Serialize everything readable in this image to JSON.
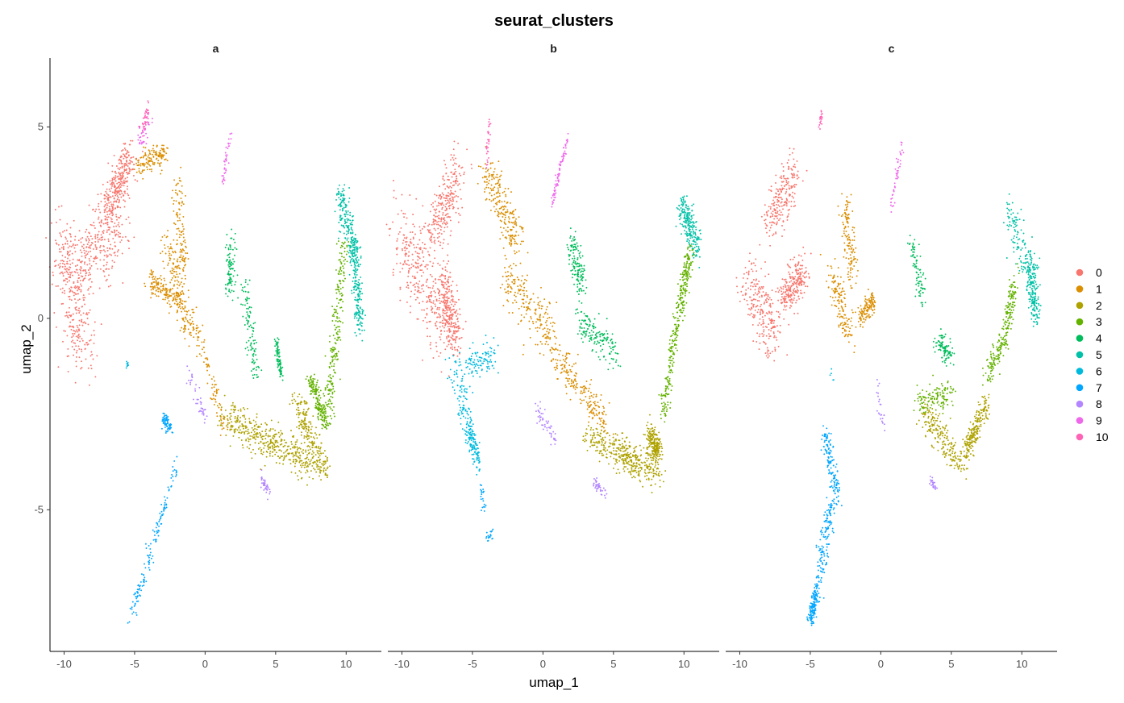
{
  "chart_data": {
    "type": "scatter",
    "title": "seurat_clusters",
    "xlabel": "umap_1",
    "ylabel": "umap_2",
    "xlim": [
      -11,
      12.5
    ],
    "ylim": [
      -8.7,
      6.8
    ],
    "x_ticks": [
      -10,
      -5,
      0,
      5,
      10
    ],
    "x_tick_labels": [
      "-10",
      "-5",
      "0",
      "5",
      "10"
    ],
    "y_ticks": [
      -5,
      0,
      5
    ],
    "y_tick_labels": [
      "-5",
      "0",
      "5"
    ],
    "grid": false,
    "legend_position": "right",
    "legend": [
      {
        "label": "0",
        "color": "#F8766D"
      },
      {
        "label": "1",
        "color": "#DB8E00"
      },
      {
        "label": "2",
        "color": "#AEA200"
      },
      {
        "label": "3",
        "color": "#64B200"
      },
      {
        "label": "4",
        "color": "#00BD5C"
      },
      {
        "label": "5",
        "color": "#00C1A7"
      },
      {
        "label": "6",
        "color": "#00BADE"
      },
      {
        "label": "7",
        "color": "#00A6FF"
      },
      {
        "label": "8",
        "color": "#B385FF"
      },
      {
        "label": "9",
        "color": "#EF67EB"
      },
      {
        "label": "10",
        "color": "#FF63B6"
      }
    ],
    "facets": [
      {
        "label": "a",
        "clusters": [
          {
            "id": "0",
            "n": 900,
            "segments": [
              [
                -10.2,
                2.0,
                -8.5,
                -1.0,
                0.9
              ],
              [
                -9.0,
                1.2,
                -6.0,
                2.6,
                1.0
              ],
              [
                -7.0,
                2.8,
                -5.2,
                4.2,
                0.6
              ]
            ]
          },
          {
            "id": "1",
            "n": 650,
            "segments": [
              [
                -4.8,
                4.0,
                -2.8,
                4.3,
                0.3
              ],
              [
                -2.0,
                3.6,
                -1.5,
                1.2,
                0.35
              ],
              [
                -2.8,
                2.0,
                -1.2,
                -0.2,
                0.45
              ],
              [
                -1.0,
                0.2,
                1.4,
                -2.8,
                0.35
              ],
              [
                -4.0,
                1.0,
                -1.8,
                0.5,
                0.3
              ]
            ]
          },
          {
            "id": "2",
            "n": 650,
            "segments": [
              [
                1.2,
                -2.5,
                4.8,
                -3.3,
                0.45
              ],
              [
                4.5,
                -3.2,
                7.5,
                -3.8,
                0.45
              ],
              [
                6.5,
                -2.2,
                8.5,
                -4.0,
                0.4
              ]
            ]
          },
          {
            "id": "3",
            "n": 420,
            "segments": [
              [
                8.8,
                -2.5,
                9.8,
                2.0,
                0.35
              ],
              [
                7.5,
                -1.6,
                8.6,
                -2.8,
                0.3
              ]
            ]
          },
          {
            "id": "4",
            "n": 280,
            "segments": [
              [
                1.8,
                2.0,
                1.8,
                0.6,
                0.35
              ],
              [
                2.8,
                0.8,
                3.6,
                -1.5,
                0.3
              ],
              [
                5.0,
                -0.5,
                5.4,
                -1.5,
                0.15
              ]
            ]
          },
          {
            "id": "5",
            "n": 380,
            "segments": [
              [
                9.5,
                3.3,
                10.8,
                1.5,
                0.4
              ],
              [
                10.5,
                2.0,
                11.0,
                -0.3,
                0.3
              ]
            ]
          },
          {
            "id": "6",
            "n": 10,
            "segments": [
              [
                -5.5,
                -1.2,
                -5.5,
                -1.2,
                0.1
              ]
            ]
          },
          {
            "id": "7",
            "n": 210,
            "segments": [
              [
                -5.3,
                -7.9,
                -3.8,
                -6.0,
                0.25
              ],
              [
                -3.6,
                -5.8,
                -2.0,
                -3.8,
                0.18
              ],
              [
                -3.0,
                -2.6,
                -2.4,
                -2.9,
                0.15
              ]
            ]
          },
          {
            "id": "8",
            "n": 80,
            "segments": [
              [
                -1.2,
                -1.4,
                0.0,
                -2.6,
                0.25
              ],
              [
                4.0,
                -4.2,
                4.5,
                -4.5,
                0.15
              ]
            ]
          },
          {
            "id": "9",
            "n": 75,
            "segments": [
              [
                1.2,
                3.5,
                1.8,
                4.8,
                0.12
              ],
              [
                -4.8,
                4.6,
                -3.8,
                5.2,
                0.25
              ]
            ]
          },
          {
            "id": "10",
            "n": 40,
            "segments": [
              [
                -4.5,
                4.8,
                -4.0,
                5.5,
                0.15
              ]
            ]
          }
        ]
      },
      {
        "label": "b",
        "clusters": [
          {
            "id": "0",
            "n": 850,
            "segments": [
              [
                -10.2,
                2.5,
                -7.2,
                -0.5,
                1.0
              ],
              [
                -8.0,
                2.0,
                -6.0,
                3.8,
                0.7
              ],
              [
                -7.2,
                1.0,
                -6.2,
                -0.5,
                0.6
              ]
            ]
          },
          {
            "id": "1",
            "n": 650,
            "segments": [
              [
                -4.0,
                3.8,
                -1.8,
                2.0,
                0.6
              ],
              [
                -2.8,
                1.2,
                0.8,
                -0.5,
                0.6
              ],
              [
                0.5,
                -0.8,
                4.5,
                -2.8,
                0.4
              ]
            ]
          },
          {
            "id": "2",
            "n": 600,
            "segments": [
              [
                3.2,
                -3.0,
                6.5,
                -3.8,
                0.4
              ],
              [
                5.5,
                -3.5,
                8.2,
                -4.0,
                0.4
              ],
              [
                7.5,
                -3.0,
                8.2,
                -3.5,
                0.3
              ]
            ]
          },
          {
            "id": "3",
            "n": 330,
            "segments": [
              [
                8.5,
                -2.5,
                9.8,
                0.5,
                0.3
              ],
              [
                9.8,
                0.5,
                10.5,
                1.8,
                0.3
              ]
            ]
          },
          {
            "id": "4",
            "n": 300,
            "segments": [
              [
                2.0,
                2.0,
                2.8,
                0.8,
                0.4
              ],
              [
                2.5,
                0.0,
                5.2,
                -1.0,
                0.4
              ]
            ]
          },
          {
            "id": "5",
            "n": 220,
            "segments": [
              [
                9.8,
                3.0,
                11.0,
                1.8,
                0.4
              ]
            ]
          },
          {
            "id": "6",
            "n": 330,
            "segments": [
              [
                -6.5,
                -1.0,
                -5.0,
                -3.2,
                0.5
              ],
              [
                -5.2,
                -3.0,
                -4.6,
                -3.8,
                0.3
              ],
              [
                -5.5,
                -1.2,
                -3.5,
                -1.0,
                0.4
              ]
            ]
          },
          {
            "id": "7",
            "n": 40,
            "segments": [
              [
                -4.0,
                -5.8,
                -3.5,
                -5.6,
                0.15
              ],
              [
                -4.4,
                -4.5,
                -4.1,
                -5.0,
                0.15
              ]
            ]
          },
          {
            "id": "8",
            "n": 90,
            "segments": [
              [
                -0.5,
                -2.4,
                0.8,
                -3.1,
                0.25
              ],
              [
                3.5,
                -4.2,
                4.5,
                -4.6,
                0.15
              ]
            ]
          },
          {
            "id": "9",
            "n": 80,
            "segments": [
              [
                0.6,
                2.9,
                1.8,
                4.8,
                0.1
              ]
            ]
          },
          {
            "id": "10",
            "n": 30,
            "segments": [
              [
                -4.0,
                4.0,
                -3.8,
                5.2,
                0.1
              ]
            ]
          }
        ]
      },
      {
        "label": "c",
        "clusters": [
          {
            "id": "0",
            "n": 700,
            "segments": [
              [
                -9.5,
                1.0,
                -7.5,
                -0.5,
                0.7
              ],
              [
                -8.0,
                2.5,
                -6.0,
                3.8,
                0.6
              ],
              [
                -7.0,
                0.5,
                -5.5,
                1.2,
                0.5
              ]
            ]
          },
          {
            "id": "1",
            "n": 400,
            "segments": [
              [
                -2.5,
                3.0,
                -2.0,
                1.0,
                0.4
              ],
              [
                -3.5,
                1.2,
                -2.2,
                -0.5,
                0.4
              ],
              [
                -1.5,
                0.0,
                -0.5,
                0.5,
                0.25
              ]
            ]
          },
          {
            "id": "2",
            "n": 420,
            "segments": [
              [
                3.0,
                -2.5,
                5.8,
                -3.8,
                0.4
              ],
              [
                6.0,
                -3.5,
                7.5,
                -2.2,
                0.3
              ]
            ]
          },
          {
            "id": "3",
            "n": 360,
            "segments": [
              [
                7.5,
                -1.5,
                8.8,
                -0.5,
                0.3
              ],
              [
                8.8,
                -0.5,
                9.5,
                1.0,
                0.3
              ],
              [
                2.5,
                -2.2,
                5.0,
                -2.0,
                0.3
              ]
            ]
          },
          {
            "id": "4",
            "n": 180,
            "segments": [
              [
                2.2,
                2.0,
                3.0,
                0.5,
                0.3
              ],
              [
                4.0,
                -0.6,
                5.0,
                -1.0,
                0.3
              ]
            ]
          },
          {
            "id": "5",
            "n": 300,
            "segments": [
              [
                9.0,
                2.8,
                11.0,
                1.0,
                0.5
              ],
              [
                10.5,
                1.5,
                11.0,
                0.0,
                0.3
              ]
            ]
          },
          {
            "id": "6",
            "n": 5,
            "segments": [
              [
                -3.5,
                -1.5,
                -3.5,
                -1.5,
                0.2
              ]
            ]
          },
          {
            "id": "7",
            "n": 420,
            "segments": [
              [
                -4.0,
                -3.0,
                -3.0,
                -4.8,
                0.3
              ],
              [
                -3.5,
                -4.8,
                -4.5,
                -7.2,
                0.35
              ],
              [
                -4.6,
                -7.2,
                -5.0,
                -7.9,
                0.2
              ]
            ]
          },
          {
            "id": "8",
            "n": 50,
            "segments": [
              [
                -0.2,
                -1.8,
                0.2,
                -2.9,
                0.15
              ],
              [
                3.5,
                -4.2,
                4.0,
                -4.5,
                0.1
              ]
            ]
          },
          {
            "id": "9",
            "n": 45,
            "segments": [
              [
                0.7,
                2.8,
                1.5,
                4.5,
                0.15
              ]
            ]
          },
          {
            "id": "10",
            "n": 20,
            "segments": [
              [
                -4.3,
                5.0,
                -4.2,
                5.4,
                0.1
              ]
            ]
          }
        ]
      }
    ]
  }
}
